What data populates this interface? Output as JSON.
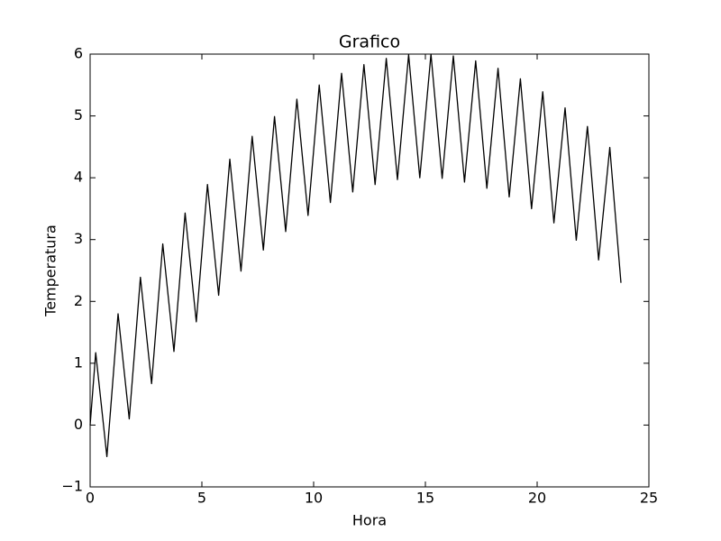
{
  "chart_data": {
    "type": "line",
    "title": "Grafico",
    "x_label": "Hora",
    "y_label": "Temperatura",
    "x": [
      0,
      0.25,
      0.5,
      0.75,
      1,
      1.25,
      1.5,
      1.75,
      2,
      2.25,
      2.5,
      2.75,
      3,
      3.25,
      3.5,
      3.75,
      4,
      4.25,
      4.5,
      4.75,
      5,
      5.25,
      5.5,
      5.75,
      6,
      6.25,
      6.5,
      6.75,
      7,
      7.25,
      7.5,
      7.75,
      8,
      8.25,
      8.5,
      8.75,
      9,
      9.25,
      9.5,
      9.75,
      10,
      10.25,
      10.5,
      10.75,
      11,
      11.25,
      11.5,
      11.75,
      12,
      12.25,
      12.5,
      12.75,
      13,
      13.25,
      13.5,
      13.75,
      14,
      14.25,
      14.5,
      14.75,
      15,
      15.25,
      15.5,
      15.75,
      16,
      16.25,
      16.5,
      16.75,
      17,
      17.25,
      17.5,
      17.75,
      18,
      18.25,
      18.5,
      18.75,
      19,
      19.25,
      19.5,
      19.75,
      20,
      20.25,
      20.5,
      20.75,
      21,
      21.25,
      21.5,
      21.75,
      22,
      22.25,
      22.5,
      22.75,
      23,
      23.25,
      23.5,
      23.75
    ],
    "series": [
      {
        "color": "#000000",
        "values": [
          0,
          1.17,
          0.33,
          -0.51,
          0.64,
          1.8,
          0.95,
          0.1,
          1.24,
          2.39,
          1.53,
          0.67,
          1.8,
          2.93,
          2.06,
          1.19,
          2.31,
          3.43,
          2.55,
          1.67,
          2.78,
          3.89,
          2.99,
          2.1,
          3.2,
          4.3,
          3.39,
          2.49,
          3.58,
          4.67,
          3.75,
          2.83,
          3.91,
          4.99,
          4.06,
          3.13,
          4.2,
          5.27,
          4.33,
          3.39,
          4.44,
          5.5,
          4.55,
          3.6,
          4.64,
          5.69,
          4.73,
          3.77,
          4.8,
          5.83,
          4.86,
          3.89,
          4.91,
          5.93,
          4.95,
          3.97,
          4.98,
          5.99,
          4.99,
          4.0,
          5,
          6.0,
          4.99,
          3.99,
          4.98,
          5.97,
          4.95,
          3.93,
          4.91,
          5.89,
          4.86,
          3.83,
          4.8,
          5.77,
          4.73,
          3.69,
          4.64,
          5.6,
          4.55,
          3.5,
          4.44,
          5.39,
          4.33,
          3.27,
          4.2,
          5.13,
          4.06,
          2.99,
          3.91,
          4.83,
          3.75,
          2.67,
          3.58,
          4.49,
          3.39,
          2.3
        ]
      }
    ],
    "xlim": [
      0,
      25
    ],
    "xticks": [
      0,
      5,
      10,
      15,
      20,
      25
    ],
    "ylim": [
      -1,
      6
    ],
    "yticks": [
      {
        "value": -1,
        "label": "−1"
      },
      0,
      1,
      2,
      3,
      4,
      5,
      6
    ]
  }
}
